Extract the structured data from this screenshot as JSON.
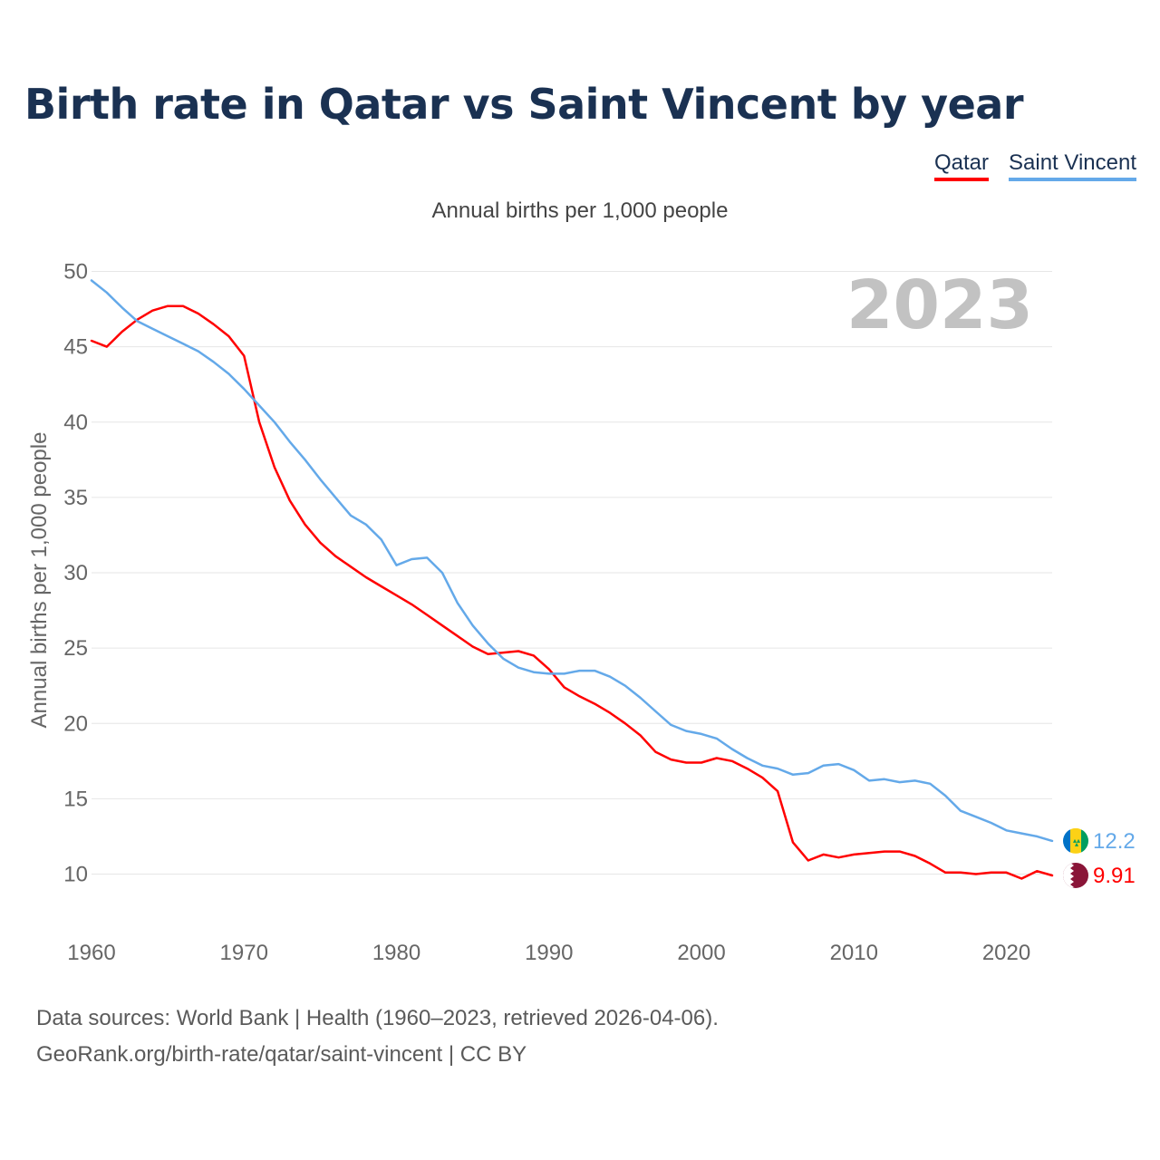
{
  "chart_data": {
    "type": "line",
    "title": "Birth rate in Qatar vs Saint Vincent by year",
    "subtitle": "Annual births per 1,000 people",
    "xlabel": "",
    "ylabel": "Annual births per 1,000 people",
    "xlim": [
      1960,
      2023
    ],
    "ylim": [
      7,
      50
    ],
    "yticks": [
      10,
      15,
      20,
      25,
      30,
      35,
      40,
      45,
      50
    ],
    "xticks": [
      1960,
      1970,
      1980,
      1990,
      2000,
      2010,
      2020
    ],
    "year_label": "2023",
    "x": [
      1960,
      1961,
      1962,
      1963,
      1964,
      1965,
      1966,
      1967,
      1968,
      1969,
      1970,
      1971,
      1972,
      1973,
      1974,
      1975,
      1976,
      1977,
      1978,
      1979,
      1980,
      1981,
      1982,
      1983,
      1984,
      1985,
      1986,
      1987,
      1988,
      1989,
      1990,
      1991,
      1992,
      1993,
      1994,
      1995,
      1996,
      1997,
      1998,
      1999,
      2000,
      2001,
      2002,
      2003,
      2004,
      2005,
      2006,
      2007,
      2008,
      2009,
      2010,
      2011,
      2012,
      2013,
      2014,
      2015,
      2016,
      2017,
      2018,
      2019,
      2020,
      2021,
      2022,
      2023
    ],
    "series": [
      {
        "name": "Qatar",
        "color": "#ff0000",
        "end_label": "9.91",
        "values": [
          45.4,
          45.0,
          46.0,
          46.8,
          47.4,
          47.7,
          47.7,
          47.2,
          46.5,
          45.7,
          44.4,
          40.0,
          37.0,
          34.8,
          33.2,
          32.0,
          31.1,
          30.4,
          29.7,
          29.1,
          28.5,
          27.9,
          27.2,
          26.5,
          25.8,
          25.1,
          24.6,
          24.7,
          24.8,
          24.5,
          23.6,
          22.4,
          21.8,
          21.3,
          20.7,
          20.0,
          19.2,
          18.1,
          17.6,
          17.4,
          17.4,
          17.7,
          17.5,
          17.0,
          16.4,
          15.5,
          12.1,
          10.9,
          11.3,
          11.1,
          11.3,
          11.4,
          11.5,
          11.5,
          11.2,
          10.7,
          10.1,
          10.1,
          10.0,
          10.1,
          10.1,
          9.7,
          10.2,
          9.91
        ]
      },
      {
        "name": "Saint Vincent",
        "color": "#64a9e9",
        "end_label": "12.2",
        "values": [
          49.4,
          48.6,
          47.6,
          46.7,
          46.2,
          45.7,
          45.2,
          44.7,
          44.0,
          43.2,
          42.2,
          41.1,
          40.0,
          38.7,
          37.5,
          36.2,
          35.0,
          33.8,
          33.2,
          32.2,
          30.5,
          30.9,
          31.0,
          30.0,
          28.0,
          26.5,
          25.3,
          24.3,
          23.7,
          23.4,
          23.3,
          23.3,
          23.5,
          23.5,
          23.1,
          22.5,
          21.7,
          20.8,
          19.9,
          19.5,
          19.3,
          19.0,
          18.3,
          17.7,
          17.2,
          17.0,
          16.6,
          16.7,
          17.2,
          17.3,
          16.9,
          16.2,
          16.3,
          16.1,
          16.2,
          16.0,
          15.2,
          14.2,
          13.8,
          13.4,
          12.9,
          12.7,
          12.5,
          12.2
        ]
      }
    ]
  },
  "legend": {
    "items": [
      "Qatar",
      "Saint Vincent"
    ]
  },
  "source": {
    "line1": "Data sources: World Bank | Health (1960–2023, retrieved 2026-04-06).",
    "line2": "GeoRank.org/birth-rate/qatar/saint-vincent | CC BY"
  },
  "colors": {
    "title": "#1a3152",
    "qatar": "#ff0000",
    "saint_vincent": "#64a9e9",
    "grid": "#e6e6e6",
    "tick_text": "#666666",
    "year_watermark": "#c2c2c2",
    "qatar_flag_maroon": "#8a1538",
    "svg_flag_blue": "#0072c6",
    "svg_flag_yellow": "#fcd116",
    "svg_flag_green": "#009e60"
  }
}
